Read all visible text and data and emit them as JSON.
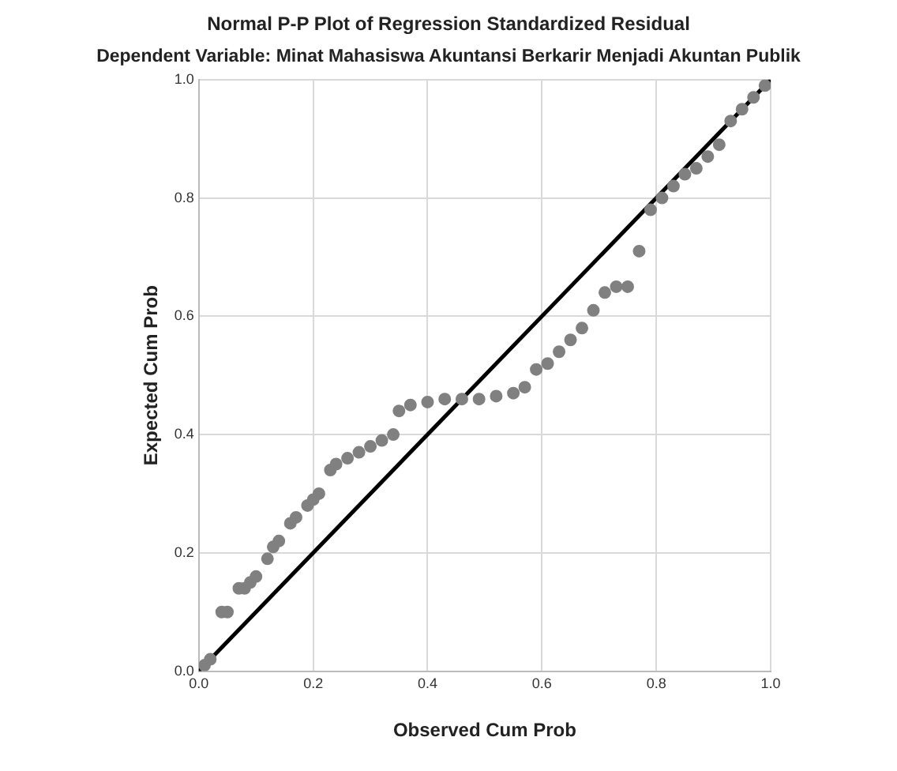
{
  "chart_data": {
    "type": "scatter",
    "title": "Normal P-P Plot of Regression Standardized Residual",
    "subtitle": "Dependent Variable: Minat Mahasiswa Akuntansi Berkarir Menjadi Akuntan Publik",
    "xlabel": "Observed Cum Prob",
    "ylabel": "Expected Cum Prob",
    "xlim": [
      0,
      1
    ],
    "ylim": [
      0,
      1
    ],
    "xticks": [
      {
        "value": 0,
        "label": "0.0"
      },
      {
        "value": 0.2,
        "label": "0.2"
      },
      {
        "value": 0.4,
        "label": "0.4"
      },
      {
        "value": 0.6,
        "label": "0.6"
      },
      {
        "value": 0.8,
        "label": "0.8"
      },
      {
        "value": 1,
        "label": "1.0"
      }
    ],
    "yticks": [
      {
        "value": 0,
        "label": "0.0"
      },
      {
        "value": 0.2,
        "label": "0.2"
      },
      {
        "value": 0.4,
        "label": "0.4"
      },
      {
        "value": 0.6,
        "label": "0.6"
      },
      {
        "value": 0.8,
        "label": "0.8"
      },
      {
        "value": 1,
        "label": "1.0"
      }
    ],
    "grid": true,
    "legend": false,
    "marker": "circle",
    "series": [
      {
        "type": "scatter",
        "color": "#808080",
        "x": [
          0.01,
          0.02,
          0.04,
          0.05,
          0.07,
          0.08,
          0.09,
          0.1,
          0.12,
          0.13,
          0.14,
          0.16,
          0.17,
          0.19,
          0.2,
          0.21,
          0.23,
          0.24,
          0.26,
          0.28,
          0.3,
          0.32,
          0.34,
          0.35,
          0.37,
          0.4,
          0.43,
          0.46,
          0.49,
          0.52,
          0.55,
          0.57,
          0.59,
          0.61,
          0.63,
          0.65,
          0.67,
          0.69,
          0.71,
          0.73,
          0.75,
          0.77,
          0.79,
          0.81,
          0.83,
          0.85,
          0.87,
          0.89,
          0.91,
          0.93,
          0.95,
          0.97,
          0.99
        ],
        "values": [
          0.01,
          0.02,
          0.1,
          0.1,
          0.14,
          0.14,
          0.15,
          0.16,
          0.19,
          0.21,
          0.22,
          0.25,
          0.26,
          0.28,
          0.29,
          0.3,
          0.34,
          0.35,
          0.36,
          0.37,
          0.38,
          0.39,
          0.4,
          0.44,
          0.45,
          0.455,
          0.46,
          0.46,
          0.46,
          0.465,
          0.47,
          0.48,
          0.51,
          0.52,
          0.54,
          0.56,
          0.58,
          0.61,
          0.64,
          0.65,
          0.65,
          0.71,
          0.78,
          0.8,
          0.82,
          0.84,
          0.85,
          0.87,
          0.89,
          0.93,
          0.95,
          0.97,
          0.99
        ]
      },
      {
        "type": "line",
        "color": "#000000",
        "x": [
          0,
          1
        ],
        "values": [
          0,
          1
        ],
        "marker": "none"
      }
    ]
  }
}
